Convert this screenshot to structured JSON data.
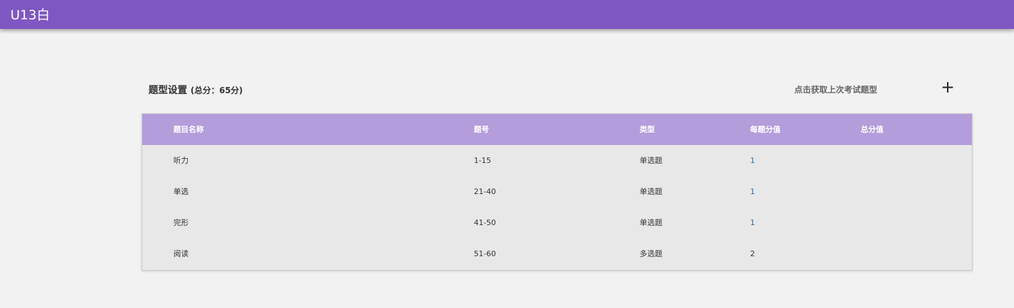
{
  "app": {
    "title": "U13白"
  },
  "section": {
    "title": "题型设置",
    "total": "(总分：65分)",
    "fetch_label": "点击获取上次考试题型",
    "add_icon": "plus-icon"
  },
  "table": {
    "headers": [
      "题目名称",
      "题号",
      "类型",
      "每题分值",
      "总分值"
    ],
    "rows": [
      {
        "name": "听力",
        "range": "1-15",
        "type": "单选题",
        "score": "1",
        "total": ""
      },
      {
        "name": "单选",
        "range": "21-40",
        "type": "单选题",
        "score": "1",
        "total": ""
      },
      {
        "name": "完形",
        "range": "41-50",
        "type": "单选题",
        "score": "1",
        "total": ""
      },
      {
        "name": "阅读",
        "range": "51-60",
        "type": "多选题",
        "score": "2",
        "total": ""
      }
    ]
  },
  "colors": {
    "accent": "#7e57c2",
    "header": "#b39ddb"
  }
}
